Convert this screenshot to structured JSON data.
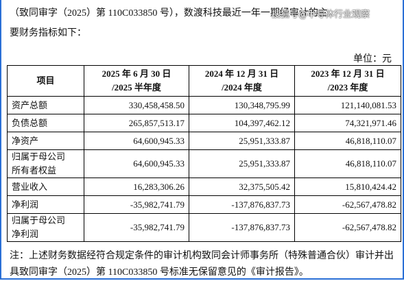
{
  "paragraph": {
    "lines": [
      "（致同审字（2025）第 110C033850 号），数渡科技最近一年一期经审计的主",
      "要财务指标如下："
    ]
  },
  "watermark": "搜狐号@半导体行业观察",
  "unit": "单位：元",
  "table": {
    "header": [
      [
        "项目"
      ],
      [
        "2025 年 6 月 30 日",
        "/2025 半年度"
      ],
      [
        "2024 年 12 月 31 日",
        "/2024 年度"
      ],
      [
        "2023 年 12 月 31 日",
        "/2023 年度"
      ]
    ],
    "rows": [
      [
        [
          "资产总额"
        ],
        "330,458,458.50",
        "130,348,795.99",
        "121,140,081.53"
      ],
      [
        [
          "负债总额"
        ],
        "265,857,513.17",
        "104,397,462.12",
        "74,321,971.46"
      ],
      [
        [
          "净资产"
        ],
        "64,600,945.33",
        "25,951,333.87",
        "46,818,110.07"
      ],
      [
        [
          "归属于母公司",
          "所有者权益"
        ],
        "64,600,945.33",
        "25,951,333.87",
        "46,818,110.07"
      ],
      [
        [
          "营业收入"
        ],
        "16,283,306.26",
        "32,375,505.42",
        "15,810,424.42"
      ],
      [
        [
          "净利润"
        ],
        "-35,982,741.79",
        "-137,876,837.73",
        "-62,567,478.82"
      ],
      [
        [
          "归属于母公司",
          "净利润"
        ],
        "-35,982,741.79",
        "-137,876,837.73",
        "-62,567,478.82"
      ]
    ]
  },
  "note": {
    "lines": [
      "注：上述财务数据经符合规定条件的审计机构致同会计师事务所（特殊普通合伙）审计并出",
      "具致同审字（2025）第 110C033850 号标准无保留意见的《审计报告》。"
    ]
  }
}
